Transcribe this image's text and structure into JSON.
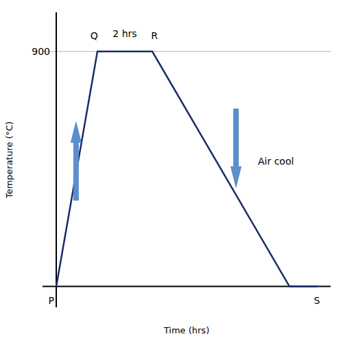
{
  "chart_data": {
    "type": "line",
    "x": [
      0.0,
      1.5,
      3.5,
      8.5,
      9.5
    ],
    "values": [
      0,
      900,
      900,
      0,
      0
    ],
    "color": "#1a2b6b",
    "xlabel": "Time (hrs)",
    "ylabel": "Temperature (°C)",
    "xlim": [
      -0.5,
      10.0
    ],
    "ylim": [
      -80,
      1050
    ],
    "xticks": [],
    "yticks": [
      900
    ],
    "grid": true,
    "tick_labels": "y",
    "annotations": [
      {
        "text": "P",
        "x": -0.18,
        "y": -55
      },
      {
        "text": "Q",
        "x": 1.38,
        "y": 960
      },
      {
        "text": "R",
        "x": 3.58,
        "y": 960
      },
      {
        "text": "S",
        "x": 9.5,
        "y": -55
      },
      {
        "text": "2 hrs",
        "x": 2.5,
        "y": 968
      },
      {
        "text": "Air cool",
        "x": 7.35,
        "y": 480,
        "anchor": "start"
      }
    ],
    "arrows": [
      {
        "x": 0.72,
        "from": 330,
        "to": 630,
        "color": "#5b8fc9"
      },
      {
        "x": 6.55,
        "from": 680,
        "to": 380,
        "color": "#5b8fc9"
      }
    ]
  }
}
